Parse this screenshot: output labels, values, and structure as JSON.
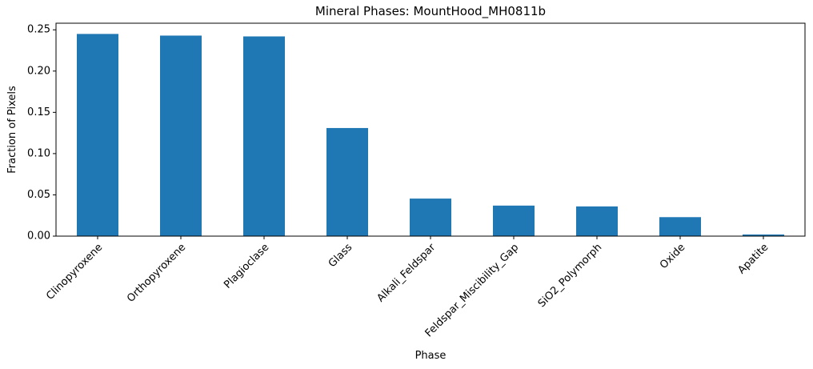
{
  "chart_data": {
    "type": "bar",
    "title": "Mineral Phases: MountHood_MH0811b",
    "x_label": "Phase",
    "y_label": "Fraction of Pixels",
    "categories": [
      "Clinopyroxene",
      "Orthopyroxene",
      "Plagioclase",
      "Glass",
      "Alkali_Feldspar",
      "Feldspar_Miscibility_Gap",
      "SiO2_Polymorph",
      "Oxide",
      "Apatite"
    ],
    "values": [
      0.245,
      0.243,
      0.242,
      0.131,
      0.0455,
      0.037,
      0.036,
      0.023,
      0.002
    ],
    "color": "#1f77b4",
    "ylim": [
      0,
      0.258
    ],
    "yticks": [
      {
        "value": 0,
        "label": "0.00"
      },
      0.05,
      {
        "value": 0.1,
        "label": "0.10"
      },
      0.15,
      {
        "value": 0.2,
        "label": "0.20"
      },
      0.25
    ],
    "grid": false
  }
}
